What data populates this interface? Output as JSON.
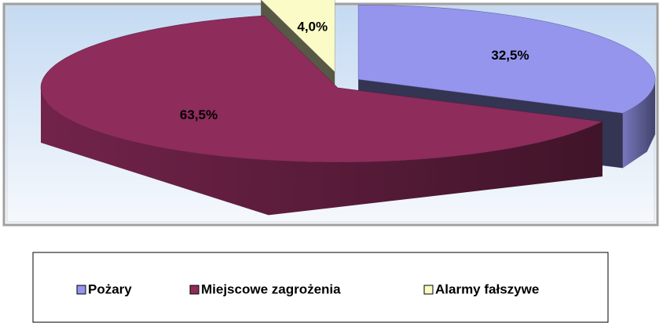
{
  "chart_data": {
    "type": "pie",
    "categories": [
      "Pożary",
      "Miejscowe zagrożenia",
      "Alarmy fałszywe"
    ],
    "values": [
      32.5,
      63.5,
      4.0
    ],
    "value_labels": [
      "32,5%",
      "63,5%",
      "4,0%"
    ],
    "colors": [
      "#9595ee",
      "#8e2c5c",
      "#fbfbc8"
    ],
    "legend": "bottom"
  }
}
